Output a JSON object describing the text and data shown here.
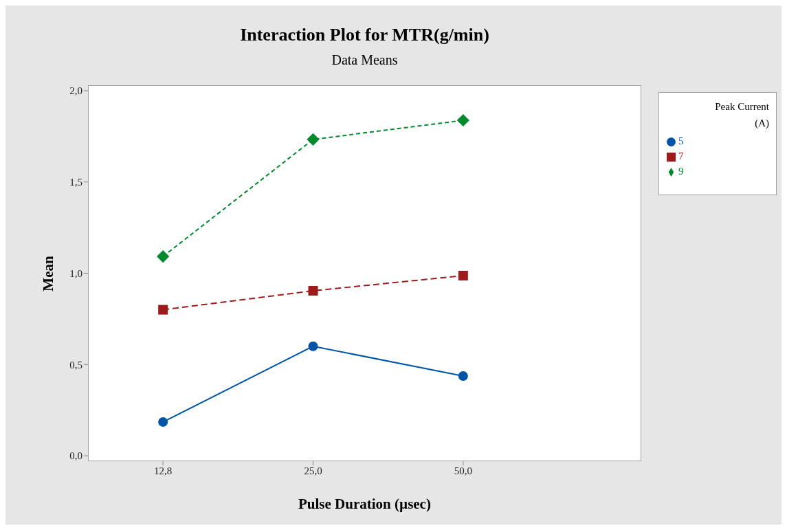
{
  "chart_data": {
    "type": "line",
    "title": "Interaction Plot for MTR(g/min)",
    "subtitle": "Data Means",
    "xlabel": "Pulse Duration (µsec)",
    "ylabel": "Mean",
    "legend_title": "Peak Current (A)",
    "categories": [
      "12,8",
      "25,0",
      "50,0"
    ],
    "series": [
      {
        "name": "5",
        "color": "#0054a6",
        "values": [
          0.185,
          0.6,
          0.437
        ],
        "marker": "circle",
        "line_style": "solid"
      },
      {
        "name": "7",
        "color": "#9e1b1b",
        "values": [
          0.8,
          0.904,
          0.987
        ],
        "marker": "square",
        "line_style": "dashed"
      },
      {
        "name": "9",
        "color": "#008a2e",
        "values": [
          1.092,
          1.733,
          1.838
        ],
        "marker": "diamond",
        "line_style": "dashed"
      }
    ],
    "ylim": [
      -0.03,
      2.03
    ],
    "yticks": [
      {
        "value": 0,
        "label": "0,0"
      },
      {
        "value": 0.5,
        "label": "0,5"
      },
      {
        "value": 1,
        "label": "1,0"
      },
      {
        "value": 1.5,
        "label": "1,5"
      },
      {
        "value": 2,
        "label": "2,0"
      }
    ],
    "grid": false,
    "legend": "right"
  }
}
